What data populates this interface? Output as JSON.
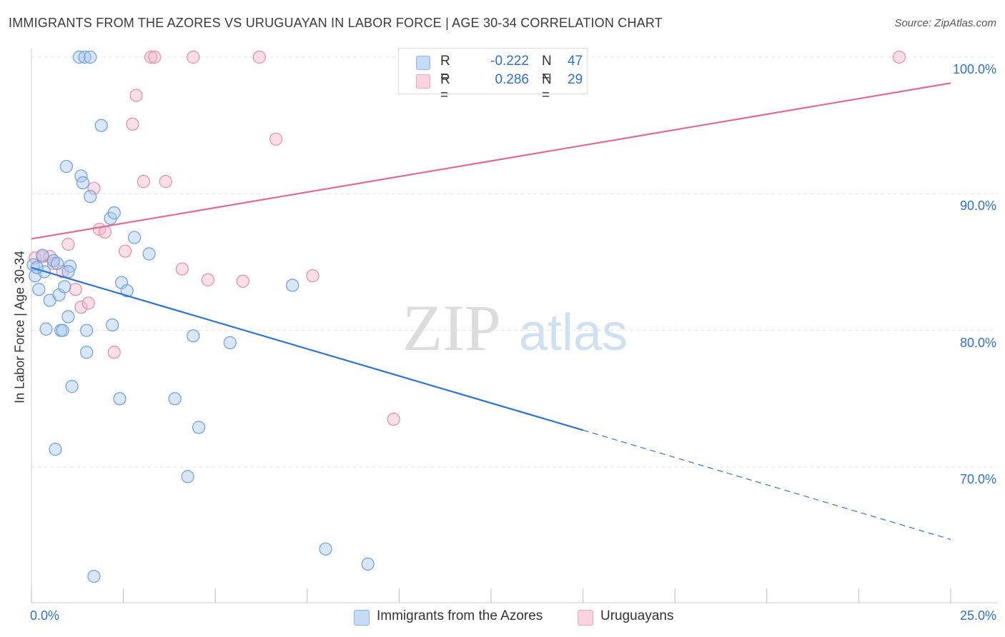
{
  "title": "IMMIGRANTS FROM THE AZORES VS URUGUAYAN IN LABOR FORCE | AGE 30-34 CORRELATION CHART",
  "source": "Source: ZipAtlas.com",
  "watermark": {
    "zip": "ZIP",
    "atlas": "atlas"
  },
  "legend": {
    "rows": [
      {
        "r_label": "R =",
        "r_value": "-0.222",
        "n_label": "N =",
        "n_value": "47",
        "color": "#a8c8f0"
      },
      {
        "r_label": "R =",
        "r_value": "0.286",
        "n_label": "N =",
        "n_value": "29",
        "color": "#f5b8cb"
      }
    ]
  },
  "bottom_legend": [
    {
      "label": "Immigrants from the Azores",
      "color": "#a8c8f0"
    },
    {
      "label": "Uruguayans",
      "color": "#f5b8cb"
    }
  ],
  "colors": {
    "blue_point_fill": "#a8c8f0",
    "blue_point_stroke": "#6a9ed8",
    "blue_line": "#2f74d0",
    "pink_point_fill": "#f5b8cb",
    "pink_point_stroke": "#e98aa8",
    "pink_line": "#e06a95",
    "tick_text": "#2f6fce"
  },
  "chart_data": {
    "type": "scatter",
    "title": "IMMIGRANTS FROM THE AZORES VS URUGUAYAN IN LABOR FORCE | AGE 30-34 CORRELATION CHART",
    "xlabel": "",
    "ylabel": "In Labor Force | Age 30-34",
    "xlim": [
      0,
      25
    ],
    "ylim": [
      60.5,
      101
    ],
    "x_tick_labels": [
      "0.0%",
      "25.0%"
    ],
    "y_ticks": [
      70,
      80,
      90,
      100
    ],
    "y_tick_labels": [
      "70.0%",
      "80.0%",
      "90.0%",
      "100.0%"
    ],
    "grid": true,
    "legend_position": "top-center",
    "series": [
      {
        "name": "Immigrants from the Azores",
        "r": -0.222,
        "n": 47,
        "points": [
          [
            0.05,
            84.8
          ],
          [
            0.1,
            84.0
          ],
          [
            0.2,
            83.0
          ],
          [
            0.3,
            85.5
          ],
          [
            0.35,
            84.3
          ],
          [
            0.4,
            80.1
          ],
          [
            0.5,
            82.2
          ],
          [
            0.6,
            85.1
          ],
          [
            0.65,
            71.3
          ],
          [
            0.7,
            84.9
          ],
          [
            0.75,
            82.6
          ],
          [
            0.8,
            80.0
          ],
          [
            0.85,
            80.0
          ],
          [
            0.9,
            83.2
          ],
          [
            0.95,
            92.0
          ],
          [
            1.0,
            81.0
          ],
          [
            1.05,
            84.7
          ],
          [
            1.1,
            75.9
          ],
          [
            1.3,
            100.0
          ],
          [
            1.35,
            91.3
          ],
          [
            1.4,
            90.8
          ],
          [
            1.45,
            100.0
          ],
          [
            1.5,
            80.0
          ],
          [
            1.5,
            78.4
          ],
          [
            1.6,
            89.8
          ],
          [
            1.6,
            100.0
          ],
          [
            1.7,
            62.0
          ],
          [
            1.9,
            95.0
          ],
          [
            2.15,
            88.2
          ],
          [
            2.2,
            80.4
          ],
          [
            2.25,
            88.6
          ],
          [
            2.4,
            75.0
          ],
          [
            2.45,
            83.5
          ],
          [
            2.6,
            82.9
          ],
          [
            2.8,
            86.8
          ],
          [
            3.2,
            85.6
          ],
          [
            3.9,
            75.0
          ],
          [
            4.25,
            69.3
          ],
          [
            4.4,
            79.6
          ],
          [
            4.55,
            72.9
          ],
          [
            5.4,
            79.1
          ],
          [
            7.1,
            83.3
          ],
          [
            8.0,
            64.0
          ],
          [
            9.15,
            62.9
          ],
          [
            11.15,
            100.0
          ],
          [
            0.15,
            84.6
          ],
          [
            1.0,
            84.3
          ]
        ],
        "trend": {
          "x": [
            0,
            15.0
          ],
          "y": [
            84.6,
            72.7
          ],
          "dashed_extension": {
            "x": [
              15.0,
              25.0
            ],
            "y": [
              72.7,
              64.7
            ]
          }
        }
      },
      {
        "name": "Uruguayans",
        "r": 0.286,
        "n": 29,
        "points": [
          [
            0.1,
            85.3
          ],
          [
            0.3,
            85.4
          ],
          [
            0.5,
            85.4
          ],
          [
            0.6,
            84.9
          ],
          [
            0.85,
            84.3
          ],
          [
            1.0,
            86.3
          ],
          [
            1.2,
            83.0
          ],
          [
            1.35,
            81.7
          ],
          [
            1.55,
            82.0
          ],
          [
            1.7,
            90.4
          ],
          [
            1.85,
            87.4
          ],
          [
            2.0,
            87.2
          ],
          [
            2.25,
            78.4
          ],
          [
            2.55,
            85.8
          ],
          [
            2.75,
            95.1
          ],
          [
            2.85,
            97.2
          ],
          [
            3.05,
            90.9
          ],
          [
            3.25,
            100.0
          ],
          [
            3.35,
            100.0
          ],
          [
            3.65,
            90.9
          ],
          [
            4.1,
            84.5
          ],
          [
            4.4,
            100.0
          ],
          [
            4.8,
            83.7
          ],
          [
            5.75,
            83.6
          ],
          [
            6.2,
            100.0
          ],
          [
            6.65,
            94.0
          ],
          [
            7.65,
            84.0
          ],
          [
            9.85,
            73.5
          ],
          [
            23.6,
            100.0
          ]
        ],
        "trend": {
          "x": [
            0,
            25.0
          ],
          "y": [
            86.7,
            98.1
          ]
        }
      }
    ]
  }
}
